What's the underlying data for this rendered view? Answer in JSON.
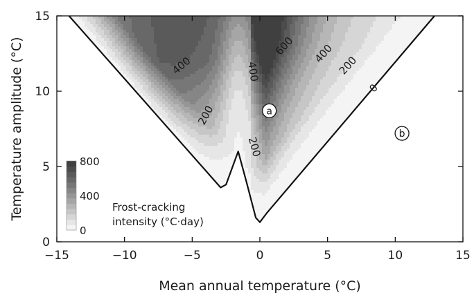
{
  "chart_data": {
    "type": "contour",
    "xlabel": "Mean annual temperature (°C)",
    "ylabel": "Temperature amplitude (°C)",
    "xlim": [
      -15,
      15
    ],
    "ylim": [
      0,
      15
    ],
    "x_ticks": [
      -15,
      -10,
      -5,
      0,
      5,
      10,
      15
    ],
    "y_ticks": [
      0,
      5,
      10,
      15
    ],
    "grid": false,
    "colorbar": {
      "title_line1": "Frost-cracking",
      "title_line2": "intensity (°C·day)",
      "ticks": [
        800,
        400,
        0
      ],
      "colors_low_to_high": [
        "#f4f4f4",
        "#e6e6e6",
        "#d6d6d6",
        "#c6c6c6",
        "#b6b6b6",
        "#a6a6a6",
        "#969696",
        "#868686",
        "#777777",
        "#686868",
        "#5a5a5a",
        "#4c4c4c",
        "#404040"
      ],
      "placement": "bottom-left"
    },
    "domain_boundary": [
      [
        -14.1,
        15
      ],
      [
        -2.9,
        3.6
      ],
      [
        -2.5,
        3.8
      ],
      [
        -1.6,
        6.0
      ],
      [
        -1.0,
        4.0
      ],
      [
        -0.3,
        1.6
      ],
      [
        0.0,
        1.3
      ],
      [
        0.5,
        1.9
      ],
      [
        12.9,
        15
      ]
    ],
    "contour_labels": [
      {
        "text": "400",
        "x": -5.8,
        "y": 11.7,
        "angle": -40
      },
      {
        "text": "200",
        "x": -4.0,
        "y": 8.4,
        "angle": -62
      },
      {
        "text": "400",
        "x": -0.5,
        "y": 11.3,
        "angle": 82
      },
      {
        "text": "600",
        "x": 1.8,
        "y": 13.0,
        "angle": -48
      },
      {
        "text": "400",
        "x": 4.7,
        "y": 12.5,
        "angle": -48
      },
      {
        "text": "200",
        "x": 6.5,
        "y": 11.7,
        "angle": -48
      },
      {
        "text": "200",
        "x": -0.4,
        "y": 6.3,
        "angle": 75
      },
      {
        "text": "0",
        "x": 8.4,
        "y": 10.2,
        "angle": -48
      }
    ],
    "markers": [
      {
        "label": "a",
        "x": 0.7,
        "y": 8.7
      },
      {
        "label": "b",
        "x": 10.5,
        "y": 7.2
      }
    ]
  }
}
